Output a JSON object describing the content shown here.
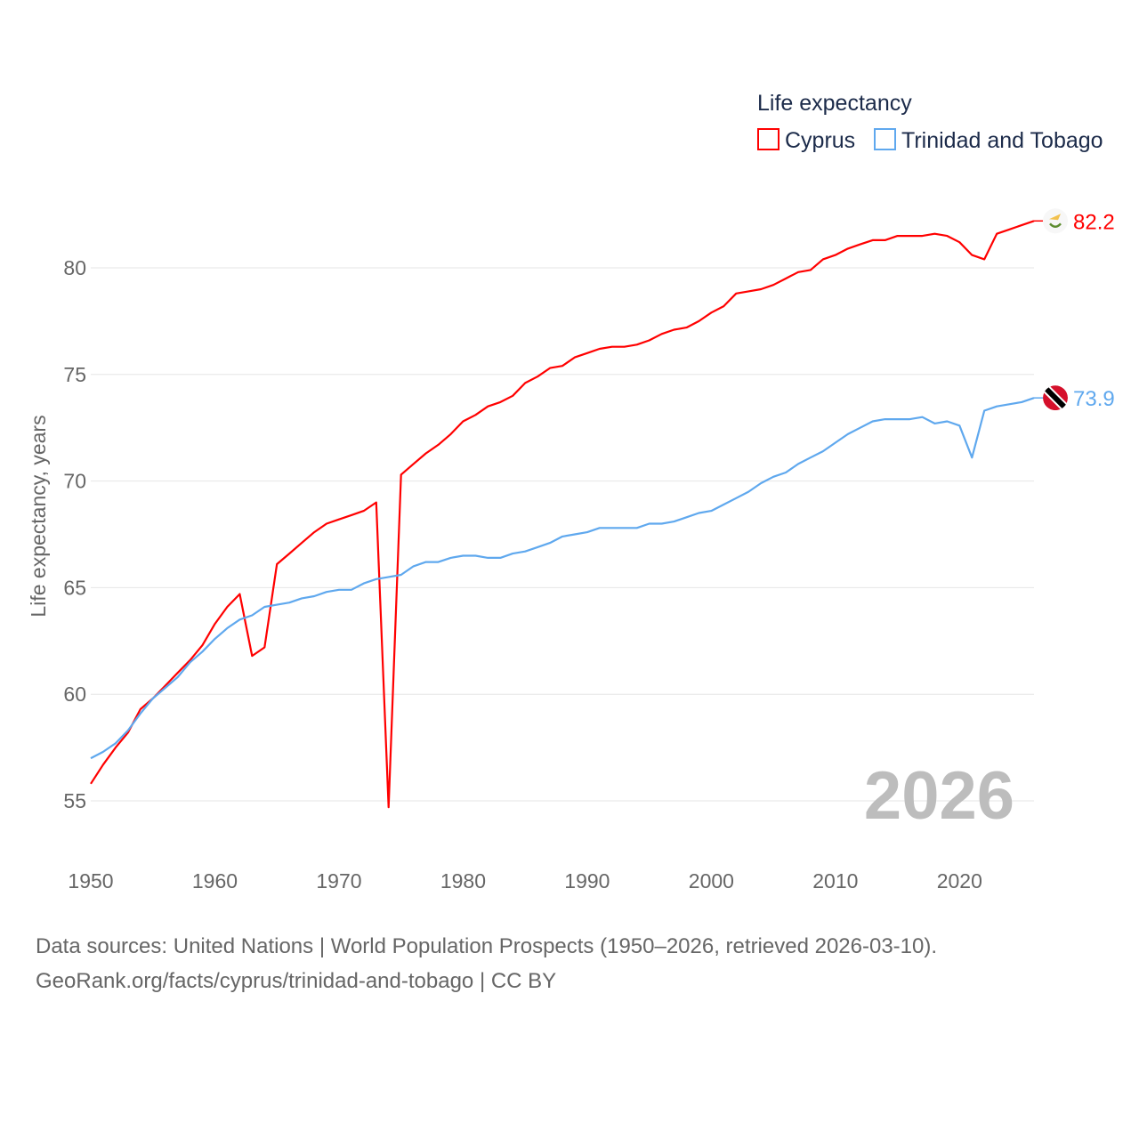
{
  "chart_data": {
    "type": "line",
    "title": "Life expectancy",
    "xlabel": "",
    "ylabel": "Life expectancy, years",
    "xlim": [
      1950,
      2026
    ],
    "ylim": [
      54,
      83
    ],
    "x_ticks": [
      1950,
      1960,
      1970,
      1980,
      1990,
      2000,
      2010,
      2020
    ],
    "y_ticks": [
      55,
      60,
      65,
      70,
      75,
      80
    ],
    "grid": true,
    "legend_position": "top-right",
    "current_year_label": "2026",
    "series": [
      {
        "name": "Cyprus",
        "color": "#ff0000",
        "end_label": "82.2",
        "flag": "cyprus-flag",
        "values": [
          55.8,
          56.7,
          57.5,
          58.2,
          59.3,
          59.8,
          60.4,
          61.0,
          61.6,
          62.3,
          63.3,
          64.1,
          64.7,
          61.8,
          62.2,
          66.1,
          66.6,
          67.1,
          67.6,
          68.0,
          68.2,
          68.4,
          68.6,
          69.0,
          54.7,
          70.3,
          70.8,
          71.3,
          71.7,
          72.2,
          72.8,
          73.1,
          73.5,
          73.7,
          74.0,
          74.6,
          74.9,
          75.3,
          75.4,
          75.8,
          76.0,
          76.2,
          76.3,
          76.3,
          76.4,
          76.6,
          76.9,
          77.1,
          77.2,
          77.5,
          77.9,
          78.2,
          78.8,
          78.9,
          79.0,
          79.2,
          79.5,
          79.8,
          79.9,
          80.4,
          80.6,
          80.9,
          81.1,
          81.3,
          81.3,
          81.5,
          81.5,
          81.5,
          81.6,
          81.5,
          81.2,
          80.6,
          80.4,
          81.6,
          81.8,
          82.0,
          82.2
        ]
      },
      {
        "name": "Trinidad and Tobago",
        "color": "#5fa8ee",
        "end_label": "73.9",
        "flag": "trinidad-and-tobago-flag",
        "values": [
          57.0,
          57.3,
          57.7,
          58.3,
          59.1,
          59.8,
          60.3,
          60.8,
          61.5,
          62.0,
          62.6,
          63.1,
          63.5,
          63.7,
          64.1,
          64.2,
          64.3,
          64.5,
          64.6,
          64.8,
          64.9,
          64.9,
          65.2,
          65.4,
          65.5,
          65.6,
          66.0,
          66.2,
          66.2,
          66.4,
          66.5,
          66.5,
          66.4,
          66.4,
          66.6,
          66.7,
          66.9,
          67.1,
          67.4,
          67.5,
          67.6,
          67.8,
          67.8,
          67.8,
          67.8,
          68.0,
          68.0,
          68.1,
          68.3,
          68.5,
          68.6,
          68.9,
          69.2,
          69.5,
          69.9,
          70.2,
          70.4,
          70.8,
          71.1,
          71.4,
          71.8,
          72.2,
          72.5,
          72.8,
          72.9,
          72.9,
          72.9,
          73.0,
          72.7,
          72.8,
          72.6,
          71.1,
          73.3,
          73.5,
          73.6,
          73.7,
          73.9
        ]
      }
    ]
  },
  "source": {
    "line1": "Data sources: United Nations | World Population Prospects (1950–2026, retrieved 2026-03-10).",
    "line2": "GeoRank.org/facts/cyprus/trinidad-and-tobago | CC BY"
  }
}
